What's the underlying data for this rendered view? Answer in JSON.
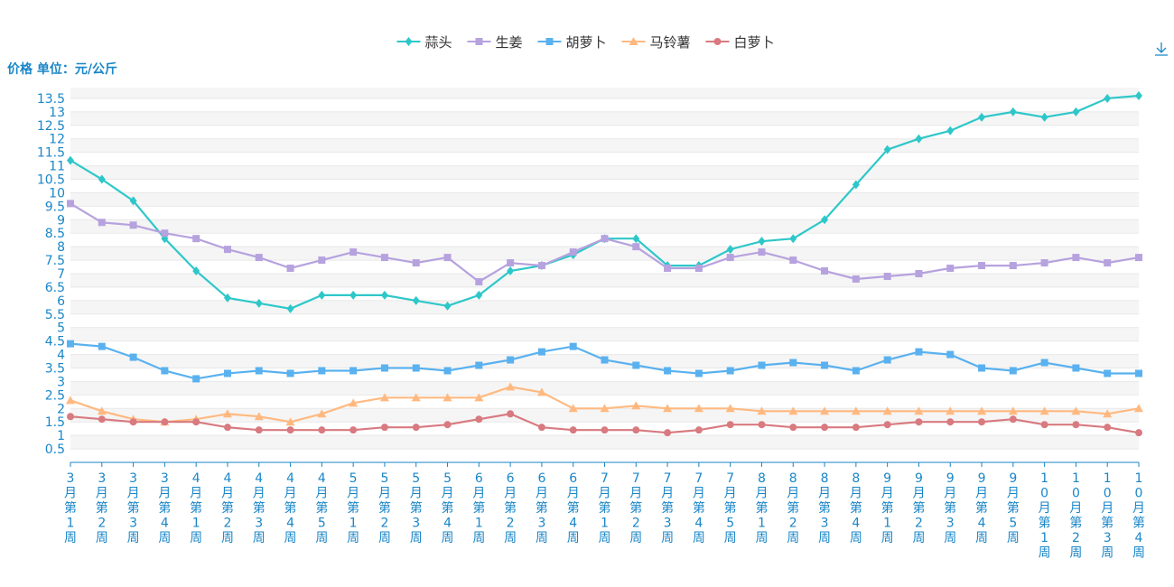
{
  "chart_data": {
    "type": "line",
    "ylabel": "价格 单位：元/公斤",
    "ylim": [
      0,
      13.9
    ],
    "yticks": [
      "0.5",
      "1",
      "1.5",
      "2",
      "2.5",
      "3",
      "3.5",
      "4",
      "4.5",
      "5",
      "5.5",
      "6",
      "6.5",
      "7",
      "7.5",
      "8",
      "8.5",
      "9",
      "9.5",
      "10",
      "10.5",
      "11",
      "11.5",
      "12",
      "12.5",
      "13",
      "13.5"
    ],
    "legend_position": "top-center",
    "grid": true,
    "categories": [
      "3月第1周",
      "3月第2周",
      "3月第3周",
      "3月第4周",
      "4月第1周",
      "4月第2周",
      "4月第3周",
      "4月第4周",
      "4月第5周",
      "5月第1周",
      "5月第2周",
      "5月第3周",
      "5月第4周",
      "6月第1周",
      "6月第2周",
      "6月第3周",
      "6月第4周",
      "7月第1周",
      "7月第2周",
      "7月第3周",
      "7月第4周",
      "7月第5周",
      "8月第1周",
      "8月第2周",
      "8月第3周",
      "8月第4周",
      "9月第1周",
      "9月第2周",
      "9月第3周",
      "9月第4周",
      "9月第5周",
      "10月第1周",
      "10月第2周",
      "10月第3周",
      "10月第4周"
    ],
    "series": [
      {
        "name": "蒜头",
        "color": "#2ec7c9",
        "marker": "diamond",
        "values": [
          11.2,
          10.5,
          9.7,
          8.3,
          7.1,
          6.1,
          5.9,
          5.7,
          6.2,
          6.2,
          6.2,
          6.0,
          5.8,
          6.2,
          7.1,
          7.3,
          7.7,
          8.3,
          8.3,
          7.3,
          7.3,
          7.9,
          8.2,
          8.3,
          9.0,
          10.3,
          11.6,
          12.0,
          12.3,
          12.8,
          13.0,
          12.8,
          13.0,
          13.5,
          13.6
        ]
      },
      {
        "name": "生姜",
        "color": "#b6a2de",
        "marker": "square",
        "values": [
          9.6,
          8.9,
          8.8,
          8.5,
          8.3,
          7.9,
          7.6,
          7.2,
          7.5,
          7.8,
          7.6,
          7.4,
          7.6,
          6.7,
          7.4,
          7.3,
          7.8,
          8.3,
          8.0,
          7.2,
          7.2,
          7.6,
          7.8,
          7.5,
          7.1,
          6.8,
          6.9,
          7.0,
          7.2,
          7.3,
          7.3,
          7.4,
          7.6,
          7.4,
          7.6
        ]
      },
      {
        "name": "胡萝卜",
        "color": "#5ab1ef",
        "marker": "square",
        "values": [
          4.4,
          4.3,
          3.9,
          3.4,
          3.1,
          3.3,
          3.4,
          3.3,
          3.4,
          3.4,
          3.5,
          3.5,
          3.4,
          3.6,
          3.8,
          4.1,
          4.3,
          3.8,
          3.6,
          3.4,
          3.3,
          3.4,
          3.6,
          3.7,
          3.6,
          3.4,
          3.8,
          4.1,
          4.0,
          3.5,
          3.4,
          3.7,
          3.5,
          3.3,
          3.3
        ]
      },
      {
        "name": "马铃薯",
        "color": "#ffb980",
        "marker": "triangle",
        "values": [
          2.3,
          1.9,
          1.6,
          1.5,
          1.6,
          1.8,
          1.7,
          1.5,
          1.8,
          2.2,
          2.4,
          2.4,
          2.4,
          2.4,
          2.8,
          2.6,
          2.0,
          2.0,
          2.1,
          2.0,
          2.0,
          2.0,
          1.9,
          1.9,
          1.9,
          1.9,
          1.9,
          1.9,
          1.9,
          1.9,
          1.9,
          1.9,
          1.9,
          1.8,
          2.0
        ]
      },
      {
        "name": "白萝卜",
        "color": "#d87a80",
        "marker": "circle",
        "values": [
          1.7,
          1.6,
          1.5,
          1.5,
          1.5,
          1.3,
          1.2,
          1.2,
          1.2,
          1.2,
          1.3,
          1.3,
          1.4,
          1.6,
          1.8,
          1.3,
          1.2,
          1.2,
          1.2,
          1.1,
          1.2,
          1.4,
          1.4,
          1.3,
          1.3,
          1.3,
          1.4,
          1.5,
          1.5,
          1.5,
          1.6,
          1.4,
          1.4,
          1.3,
          1.1
        ]
      }
    ]
  },
  "toolbar": {
    "download_icon": "download-icon"
  }
}
